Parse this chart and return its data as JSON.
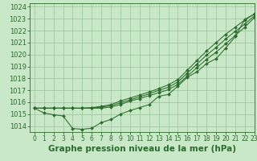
{
  "background_color": "#c8e8c8",
  "grid_color": "#a0c8a0",
  "line_color": "#2d6a2d",
  "xlabel": "Graphe pression niveau de la mer (hPa)",
  "xlim": [
    -0.5,
    23
  ],
  "ylim": [
    1013.5,
    1024.3
  ],
  "yticks": [
    1014,
    1015,
    1016,
    1017,
    1018,
    1019,
    1020,
    1021,
    1022,
    1023,
    1024
  ],
  "xticks": [
    0,
    1,
    2,
    3,
    4,
    5,
    6,
    7,
    8,
    9,
    10,
    11,
    12,
    13,
    14,
    15,
    16,
    17,
    18,
    19,
    20,
    21,
    22,
    23
  ],
  "series": [
    [
      1015.5,
      1015.1,
      1014.95,
      1014.85,
      1013.8,
      1013.73,
      1013.82,
      1014.3,
      1014.55,
      1015.0,
      1015.3,
      1015.55,
      1015.8,
      1016.5,
      1016.65,
      1017.35,
      1018.1,
      1018.55,
      1019.25,
      1019.65,
      1020.55,
      1021.5,
      1022.95,
      1023.4
    ],
    [
      1015.5,
      1015.5,
      1015.5,
      1015.5,
      1015.5,
      1015.5,
      1015.5,
      1015.5,
      1015.6,
      1015.8,
      1016.1,
      1016.3,
      1016.55,
      1016.8,
      1017.05,
      1017.5,
      1018.2,
      1018.9,
      1019.6,
      1020.2,
      1020.9,
      1021.6,
      1022.3,
      1023.1
    ],
    [
      1015.5,
      1015.5,
      1015.5,
      1015.5,
      1015.5,
      1015.5,
      1015.5,
      1015.6,
      1015.7,
      1015.95,
      1016.2,
      1016.45,
      1016.7,
      1017.0,
      1017.25,
      1017.7,
      1018.45,
      1019.2,
      1019.95,
      1020.6,
      1021.3,
      1021.95,
      1022.55,
      1023.25
    ],
    [
      1015.5,
      1015.5,
      1015.5,
      1015.5,
      1015.5,
      1015.5,
      1015.55,
      1015.65,
      1015.8,
      1016.1,
      1016.35,
      1016.6,
      1016.85,
      1017.15,
      1017.45,
      1017.9,
      1018.7,
      1019.5,
      1020.3,
      1021.0,
      1021.7,
      1022.3,
      1022.9,
      1023.4
    ]
  ]
}
